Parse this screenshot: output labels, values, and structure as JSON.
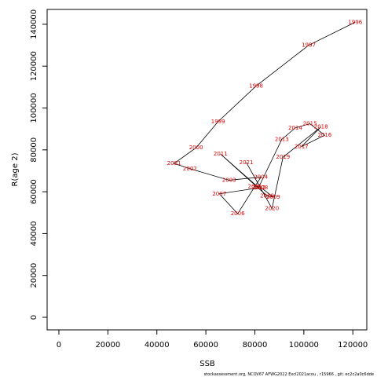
{
  "chart_data": {
    "type": "line",
    "xlabel": "SSB",
    "ylabel": "R(age 2)",
    "footer": "stockassessment.org, NCOV67  AFWG2022  Excl2021acou , r15966 , git: ec2c2a0c6dde",
    "labels": [
      "1996",
      "1997",
      "1998",
      "1999",
      "2000",
      "2001",
      "2002",
      "2003",
      "2004",
      "2005",
      "2006",
      "2007",
      "2008",
      "2009",
      "2010",
      "2011",
      "2012",
      "2013",
      "2014",
      "2015",
      "2016",
      "2017",
      "2018",
      "2019",
      "2020",
      "2021"
    ],
    "x": [
      121000,
      102000,
      80500,
      65000,
      56000,
      47000,
      53500,
      69500,
      82500,
      80000,
      73000,
      65500,
      82500,
      87500,
      85000,
      66000,
      81500,
      91000,
      96500,
      102500,
      108500,
      99000,
      107000,
      91500,
      87000,
      76500
    ],
    "values": [
      141000,
      130000,
      110500,
      93500,
      81000,
      73500,
      71000,
      65500,
      67000,
      62500,
      49500,
      59000,
      62000,
      57500,
      58000,
      78000,
      62000,
      85000,
      90500,
      92500,
      87000,
      81500,
      91000,
      76500,
      52000,
      74000
    ],
    "color": "#000000",
    "label_color": "#e00000",
    "xlim": [
      -4800,
      125700
    ],
    "ylim": [
      -6000,
      147100
    ],
    "xticks": [
      0,
      20000,
      40000,
      60000,
      80000,
      100000,
      120000
    ],
    "yticks": [
      0,
      20000,
      40000,
      60000,
      80000,
      100000,
      120000,
      140000
    ]
  }
}
